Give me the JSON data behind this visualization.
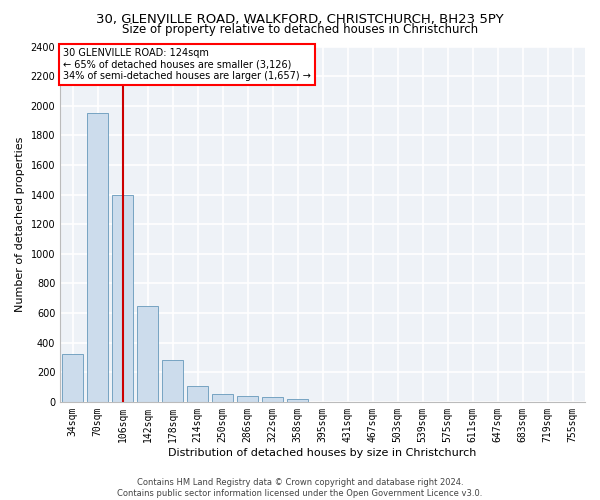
{
  "title": "30, GLENVILLE ROAD, WALKFORD, CHRISTCHURCH, BH23 5PY",
  "subtitle": "Size of property relative to detached houses in Christchurch",
  "xlabel": "Distribution of detached houses by size in Christchurch",
  "ylabel": "Number of detached properties",
  "bar_color": "#ccdcec",
  "bar_edge_color": "#6699bb",
  "categories": [
    "34sqm",
    "70sqm",
    "106sqm",
    "142sqm",
    "178sqm",
    "214sqm",
    "250sqm",
    "286sqm",
    "322sqm",
    "358sqm",
    "395sqm",
    "431sqm",
    "467sqm",
    "503sqm",
    "539sqm",
    "575sqm",
    "611sqm",
    "647sqm",
    "683sqm",
    "719sqm",
    "755sqm"
  ],
  "values": [
    325,
    1950,
    1400,
    650,
    280,
    105,
    50,
    40,
    30,
    20,
    0,
    0,
    0,
    0,
    0,
    0,
    0,
    0,
    0,
    0,
    0
  ],
  "ylim": [
    0,
    2400
  ],
  "yticks": [
    0,
    200,
    400,
    600,
    800,
    1000,
    1200,
    1400,
    1600,
    1800,
    2000,
    2200,
    2400
  ],
  "vline_x": 2.0,
  "vline_color": "#cc0000",
  "annotation_text": "30 GLENVILLE ROAD: 124sqm\n← 65% of detached houses are smaller (3,126)\n34% of semi-detached houses are larger (1,657) →",
  "footer_line1": "Contains HM Land Registry data © Crown copyright and database right 2024.",
  "footer_line2": "Contains public sector information licensed under the Open Government Licence v3.0.",
  "bg_color": "#eef2f7",
  "grid_color": "#ffffff",
  "title_fontsize": 9.5,
  "subtitle_fontsize": 8.5,
  "tick_fontsize": 7,
  "ylabel_fontsize": 8,
  "xlabel_fontsize": 8,
  "footer_fontsize": 6,
  "annotation_fontsize": 7
}
